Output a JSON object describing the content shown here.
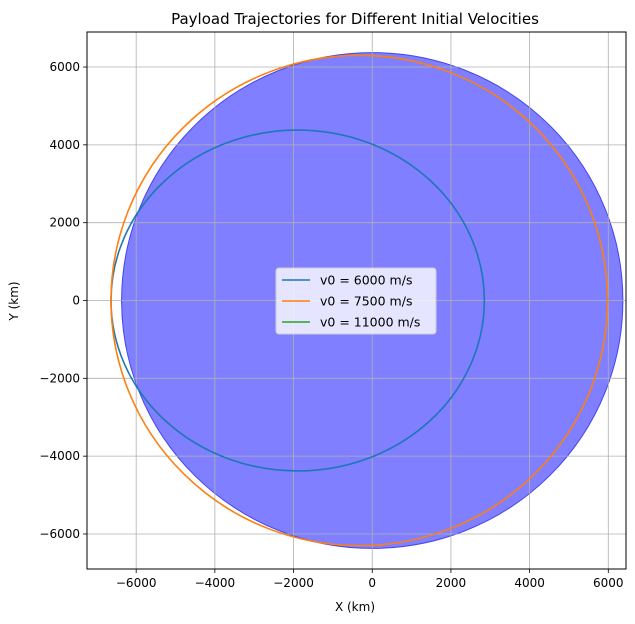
{
  "chart_data": {
    "type": "line",
    "title": "Payload Trajectories for Different Initial Velocities",
    "xlabel": "X (km)",
    "ylabel": "Y (km)",
    "xlim": [
      -7250,
      6450
    ],
    "ylim": [
      -6900,
      6900
    ],
    "xticks": [
      -6000,
      -4000,
      -2000,
      0,
      2000,
      4000,
      6000
    ],
    "yticks": [
      -6000,
      -4000,
      -2000,
      0,
      2000,
      4000,
      6000
    ],
    "grid": true,
    "legend_position": "center",
    "earth": {
      "center": [
        0,
        0
      ],
      "radius": 6371,
      "color": "#7f7fff"
    },
    "series": [
      {
        "name": "v0 = 6000 m/s",
        "color": "#1f77b4",
        "orbit": {
          "periapsis_x": 2850,
          "apoapsis_x": -6640,
          "semi_minor": 4380
        }
      },
      {
        "name": "v0 = 7500 m/s",
        "color": "#ff7f0e",
        "orbit": {
          "periapsis_x": 5980,
          "apoapsis_x": -6640,
          "semi_minor": 6300
        }
      },
      {
        "name": "v0 = 11000 m/s",
        "color": "#2ca02c",
        "orbit": null
      }
    ]
  }
}
